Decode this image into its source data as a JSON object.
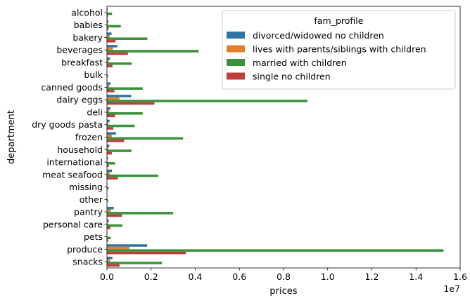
{
  "chart_data": {
    "type": "bar",
    "orientation": "horizontal",
    "xlabel": "prices",
    "ylabel": "department",
    "offset_label": "1e7",
    "xlim": [
      0,
      1.6
    ],
    "xticks": [
      "0.0",
      "0.2",
      "0.4",
      "0.6",
      "0.8",
      "1.0",
      "1.2",
      "1.4",
      "1.6"
    ],
    "categories": [
      "alcohol",
      "babies",
      "bakery",
      "beverages",
      "breakfast",
      "bulk",
      "canned goods",
      "dairy eggs",
      "deli",
      "dry goods pasta",
      "frozen",
      "household",
      "international",
      "meat seafood",
      "missing",
      "other",
      "pantry",
      "personal care",
      "pets",
      "produce",
      "snacks"
    ],
    "legend_title": "fam_profile",
    "legend_position": "top-right",
    "series": [
      {
        "name": "divorced/widowed no children",
        "color": "#3274a1",
        "values": [
          0.003,
          0.006,
          0.021,
          0.047,
          0.014,
          0.0005,
          0.016,
          0.11,
          0.016,
          0.012,
          0.041,
          0.011,
          0.004,
          0.023,
          0.0008,
          0.0005,
          0.031,
          0.008,
          0.002,
          0.182,
          0.025
        ]
      },
      {
        "name": "lives with parents/siblings with children",
        "color": "#e1812c",
        "values": [
          0.002,
          0.004,
          0.013,
          0.027,
          0.008,
          0.0003,
          0.01,
          0.057,
          0.01,
          0.007,
          0.022,
          0.006,
          0.002,
          0.013,
          0.0004,
          0.0003,
          0.017,
          0.004,
          0.001,
          0.102,
          0.014
        ]
      },
      {
        "name": "married with children",
        "color": "#3a923a",
        "values": [
          0.023,
          0.063,
          0.183,
          0.415,
          0.112,
          0.005,
          0.162,
          0.908,
          0.162,
          0.126,
          0.345,
          0.111,
          0.036,
          0.232,
          0.008,
          0.005,
          0.3,
          0.07,
          0.017,
          1.525,
          0.249
        ]
      },
      {
        "name": "single no children",
        "color": "#c03d3e",
        "values": [
          0.004,
          0.007,
          0.039,
          0.095,
          0.025,
          0.0005,
          0.034,
          0.215,
          0.036,
          0.029,
          0.078,
          0.022,
          0.008,
          0.049,
          0.0015,
          0.001,
          0.068,
          0.016,
          0.005,
          0.358,
          0.057
        ]
      }
    ]
  }
}
